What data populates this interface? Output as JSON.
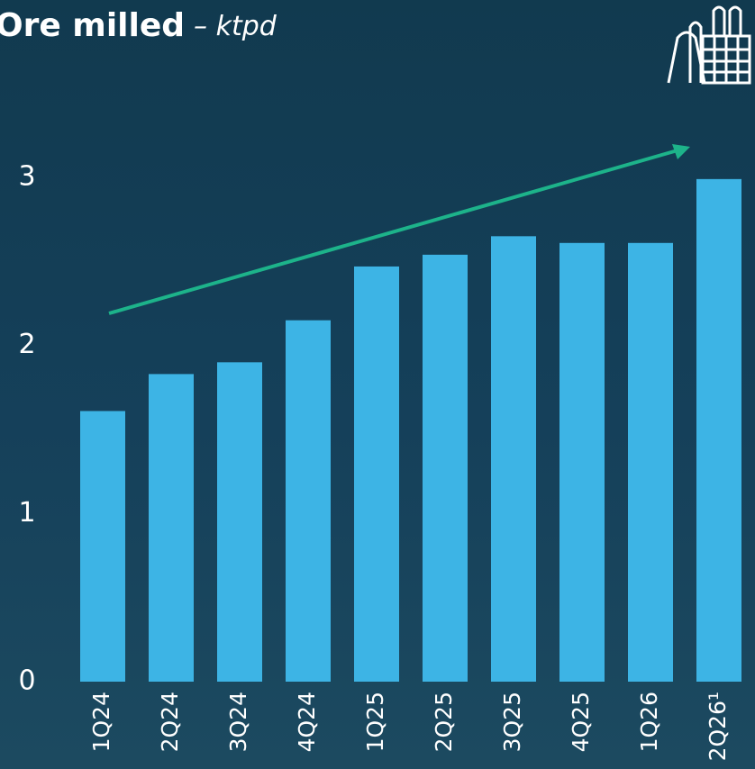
{
  "chart_data": {
    "type": "bar",
    "title": "Ore milled",
    "subtitle": "– ktpd",
    "categories": [
      "1Q24",
      "2Q24",
      "3Q24",
      "4Q24",
      "1Q25",
      "2Q25",
      "3Q25",
      "4Q25",
      "1Q26",
      "2Q26¹"
    ],
    "values": [
      1.61,
      1.83,
      1.9,
      2.15,
      2.47,
      2.54,
      2.65,
      2.61,
      2.61,
      2.99
    ],
    "color": "#3db4e5",
    "ylim": [
      0,
      3
    ],
    "yticks": [
      0,
      1,
      2,
      3
    ],
    "grid": false
  }
}
